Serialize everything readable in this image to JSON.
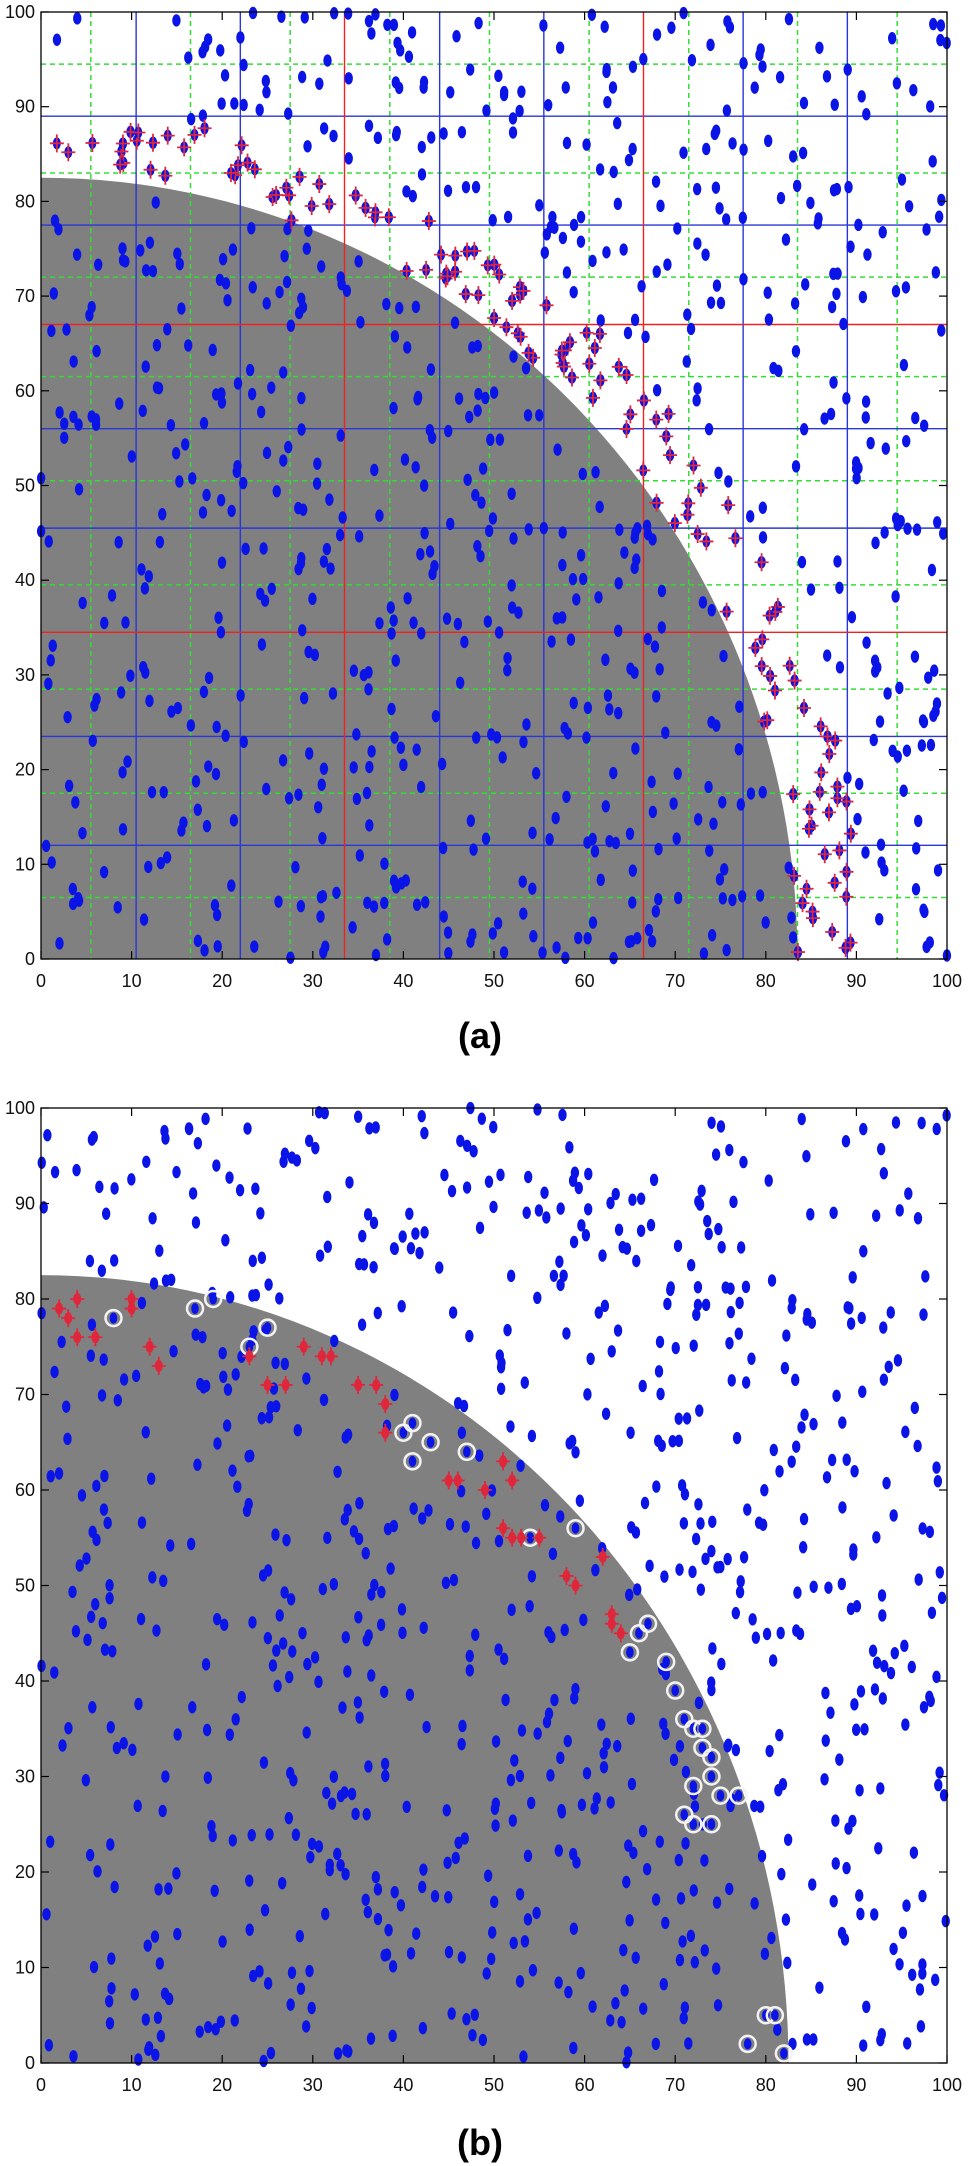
{
  "chart_data": [
    {
      "type": "scatter",
      "panel_label": "(a)",
      "xlim": [
        0,
        100
      ],
      "ylim": [
        0,
        100
      ],
      "x_ticks": [
        0,
        10,
        20,
        30,
        40,
        50,
        60,
        70,
        80,
        90,
        100
      ],
      "y_ticks": [
        0,
        10,
        20,
        30,
        40,
        50,
        60,
        70,
        80,
        90,
        100
      ],
      "region": {
        "shape": "quarter-disk",
        "center": [
          0,
          0
        ],
        "radius_x": 83.5,
        "radius_y": 82.5,
        "color": "#808080"
      },
      "grid_lines": {
        "blue_solid_x": [
          10.5,
          22,
          44,
          55.5,
          77.5,
          89
        ],
        "blue_solid_y": [
          89,
          77.5,
          56,
          45.5,
          23.5,
          12
        ],
        "red_solid_x": [
          33.5,
          66.5
        ],
        "red_solid_y": [
          67,
          34.5
        ],
        "green_dashed_x": [
          5.5,
          16.5,
          27.5,
          38.5,
          49.5,
          60.5,
          71.5,
          83.5,
          94.5
        ],
        "green_dashed_y": [
          94.5,
          83,
          72,
          61.5,
          50.5,
          39.5,
          28.5,
          17.5,
          6.5
        ]
      },
      "point_color": "#0a14e6",
      "highlight_color": "#e0263a",
      "marker_shape": "blue ellipse; red cross on boundary points"
    },
    {
      "type": "scatter",
      "panel_label": "(b)",
      "xlim": [
        0,
        100
      ],
      "ylim": [
        0,
        100
      ],
      "x_ticks": [
        0,
        10,
        20,
        30,
        40,
        50,
        60,
        70,
        80,
        90,
        100
      ],
      "y_ticks": [
        0,
        10,
        20,
        30,
        40,
        50,
        60,
        70,
        80,
        90,
        100
      ],
      "region": {
        "shape": "quarter-disk",
        "center": [
          0,
          0
        ],
        "radius_x": 82.5,
        "radius_y": 82.5,
        "color": "#808080"
      },
      "point_color": "#0a14e6",
      "highlight_color": "#e0263a",
      "ring_color": "#f2f2f2",
      "marker_shape": "blue ellipse; red cross or white ring on boundary points",
      "boundary_points_cross": [
        [
          2,
          79
        ],
        [
          3,
          78
        ],
        [
          4,
          80
        ],
        [
          4,
          76
        ],
        [
          6,
          76
        ],
        [
          10,
          79
        ],
        [
          10,
          80
        ],
        [
          12,
          75
        ],
        [
          13,
          73
        ],
        [
          23,
          74
        ],
        [
          25,
          71
        ],
        [
          27,
          71
        ],
        [
          29,
          75
        ],
        [
          31,
          74
        ],
        [
          32,
          74
        ],
        [
          35,
          71
        ],
        [
          37,
          71
        ],
        [
          38,
          69
        ],
        [
          38,
          66
        ],
        [
          45,
          61
        ],
        [
          46,
          61
        ],
        [
          49,
          60
        ],
        [
          51,
          56
        ],
        [
          52,
          55
        ],
        [
          53,
          55
        ],
        [
          55,
          55
        ],
        [
          51,
          63
        ],
        [
          52,
          61
        ],
        [
          58,
          51
        ],
        [
          59,
          50
        ],
        [
          62,
          53
        ],
        [
          63,
          46
        ],
        [
          64,
          45
        ],
        [
          63,
          47
        ]
      ],
      "boundary_points_ring": [
        [
          8,
          78
        ],
        [
          17,
          79
        ],
        [
          19,
          80
        ],
        [
          23,
          75
        ],
        [
          25,
          77
        ],
        [
          40,
          66
        ],
        [
          41,
          67
        ],
        [
          43,
          65
        ],
        [
          41,
          63
        ],
        [
          47,
          64
        ],
        [
          54,
          55
        ],
        [
          59,
          56
        ],
        [
          65,
          43
        ],
        [
          66,
          45
        ],
        [
          67,
          46
        ],
        [
          69,
          42
        ],
        [
          70,
          39
        ],
        [
          71,
          36
        ],
        [
          72,
          35
        ],
        [
          73,
          35
        ],
        [
          73,
          33
        ],
        [
          74,
          32
        ],
        [
          72,
          29
        ],
        [
          74,
          30
        ],
        [
          75,
          28
        ],
        [
          72,
          25
        ],
        [
          74,
          25
        ],
        [
          71,
          26
        ],
        [
          77,
          28
        ],
        [
          80,
          5
        ],
        [
          81,
          5
        ],
        [
          78,
          2
        ],
        [
          82,
          1
        ]
      ]
    }
  ]
}
